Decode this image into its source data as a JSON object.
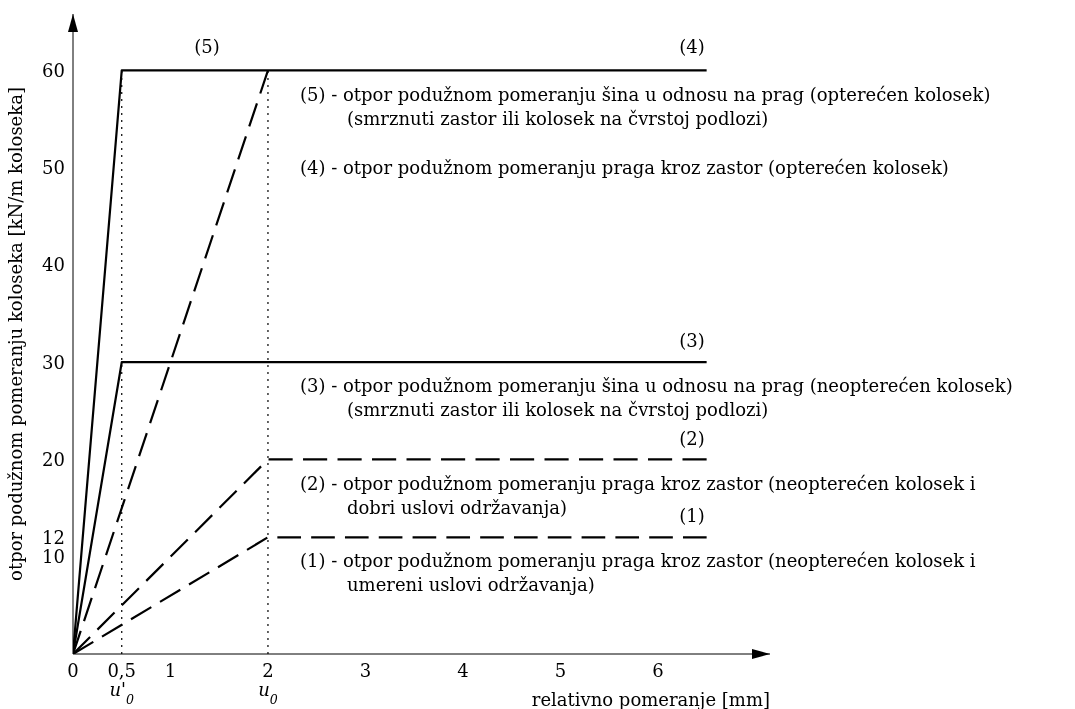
{
  "chart_data": {
    "type": "line",
    "xlabel": "relativno pomeranje [mm]",
    "ylabel": "otpor podužnom pomeranju koloseka [kN/m koloseka]",
    "xlim": [
      0,
      7.15
    ],
    "ylim": [
      0,
      65.8
    ],
    "xticks": [
      0,
      {
        "value": 0.5,
        "label": "0,5"
      },
      1,
      2,
      3,
      4,
      5,
      6
    ],
    "yticks": [
      10,
      12,
      20,
      30,
      40,
      50,
      60
    ],
    "grid": false,
    "legend": false,
    "marker": "none",
    "series": [
      {
        "color": "#000000",
        "line_style": "solid",
        "x": [
          0,
          0.5,
          6.5
        ],
        "values": [
          0,
          60,
          60
        ]
      },
      {
        "color": "#000000",
        "line_style": "dashed",
        "x": [
          0,
          2
        ],
        "values": [
          0,
          60
        ]
      },
      {
        "color": "#000000",
        "line_style": "solid",
        "x": [
          0,
          0.5,
          6.5
        ],
        "values": [
          0,
          30,
          30
        ]
      },
      {
        "color": "#000000",
        "line_style": "dashed",
        "x": [
          0,
          2,
          6.5
        ],
        "values": [
          0,
          20,
          20
        ]
      },
      {
        "color": "#000000",
        "line_style": "dashed",
        "x": [
          0,
          2,
          6.5
        ],
        "values": [
          0,
          12,
          12
        ]
      }
    ],
    "ref_lines": [
      {
        "axis": "x",
        "value": 0.5,
        "line_style": "dotted",
        "color": "#000000"
      },
      {
        "axis": "x",
        "value": 2,
        "line_style": "dotted",
        "color": "#000000"
      }
    ],
    "annotations": [
      "(5)",
      "(4)",
      "(3)",
      "(2)",
      "(1)",
      "u'$_{0}$",
      "u$_{0}$",
      "(5) - otpor podužnom pomeranju šina u odnosu na prag (opterećen kolosek)\n(smrznuti zastor ili kolosek na čvrstoj podlozi)",
      "(4) - otpor podužnom pomeranju praga kroz zastor (opterećen kolosek)",
      "(3) - otpor podužnom pomeranju šina u odnosu na prag (neopterećen kolosek)\n(smrznuti zastor ili kolosek na čvrstoj podlozi)",
      "(2) - otpor podužnom pomeranju praga kroz zastor (neopterećen kolosek i\ndobri uslovi održavanja)",
      "(1) - otpor podužnom pomeranju praga kroz zastor (neopterećen kolosek i\numereni uslovi održavanja)"
    ]
  }
}
